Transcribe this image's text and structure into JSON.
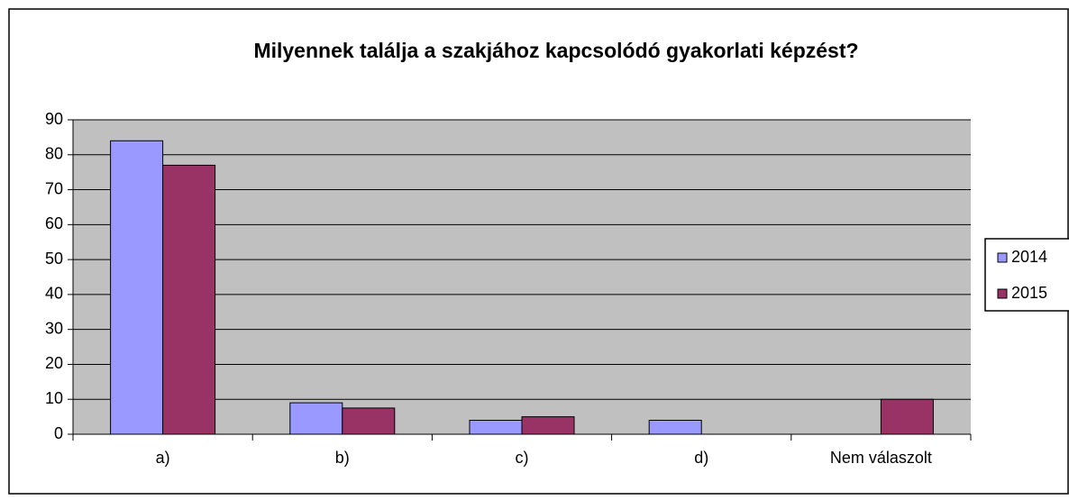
{
  "chart_data": {
    "type": "bar",
    "title": "Milyennek találja a szakjához kapcsolódó gyakorlati képzést?",
    "categories": [
      "a)",
      "b)",
      "c)",
      "d)",
      "Nem válaszolt"
    ],
    "series": [
      {
        "name": "2014",
        "color": "#9999ff",
        "values": [
          84,
          9,
          4,
          4,
          0
        ]
      },
      {
        "name": "2015",
        "color": "#993366",
        "values": [
          77,
          7.5,
          5,
          0,
          10
        ]
      }
    ],
    "ylim": [
      0,
      90
    ],
    "yticks": [
      0,
      10,
      20,
      30,
      40,
      50,
      60,
      70,
      80,
      90
    ],
    "grid": true,
    "legend": "right"
  }
}
